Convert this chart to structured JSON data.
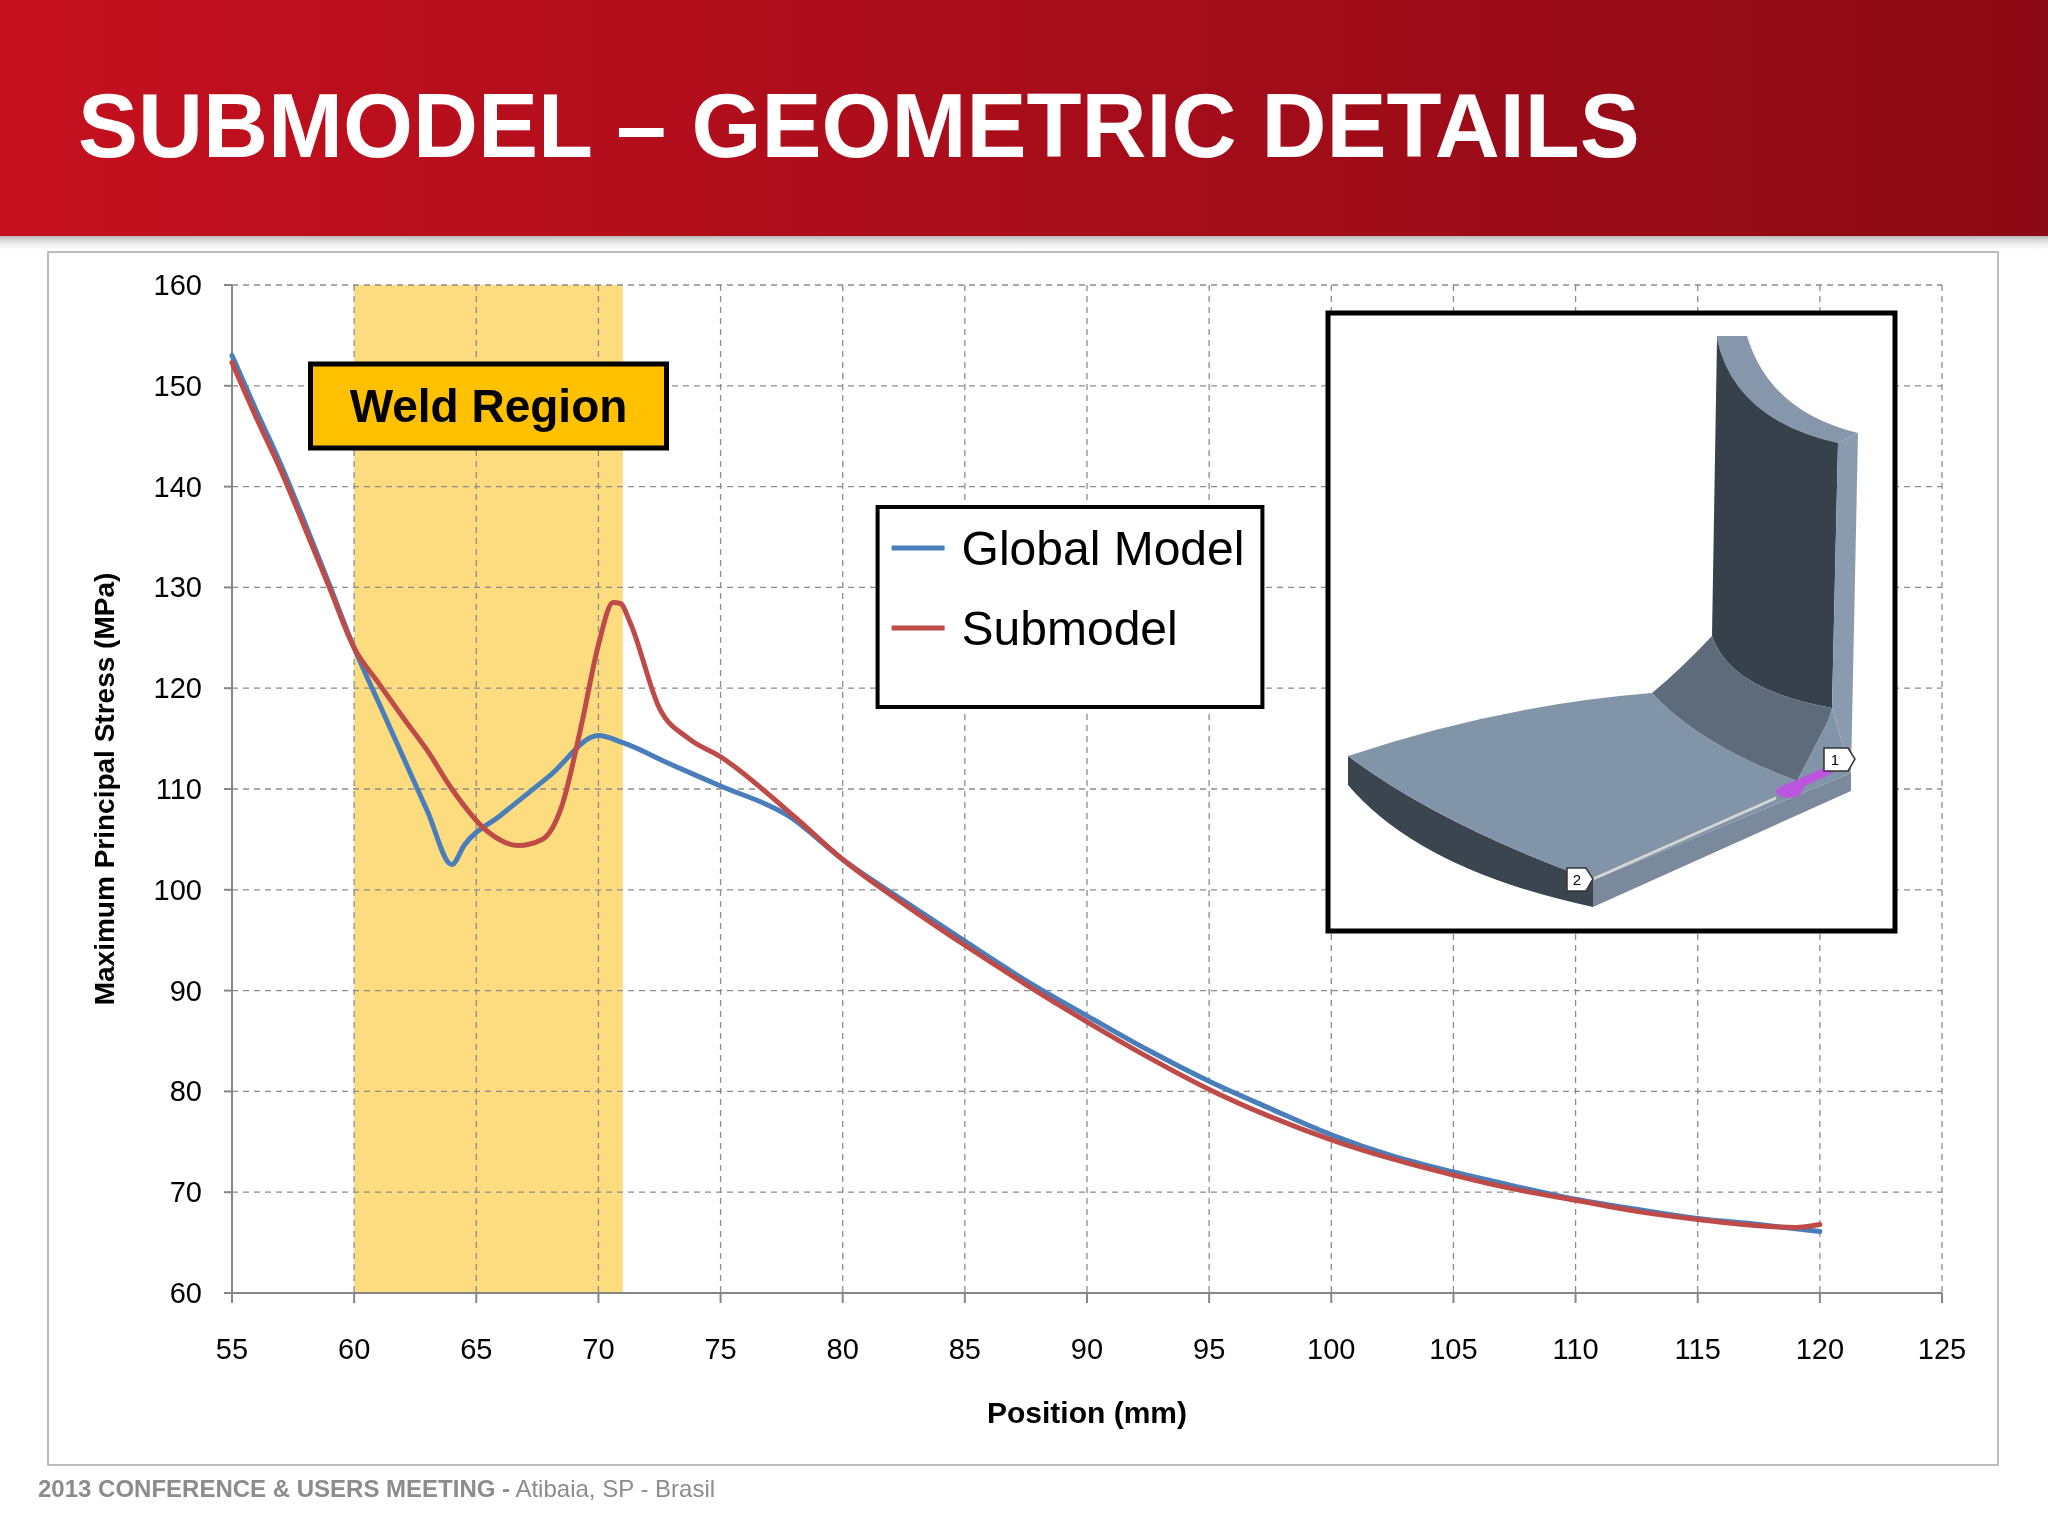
{
  "chart_data": {
    "type": "line",
    "title": "SUBMODEL – GEOMETRIC DETAILS",
    "xlabel": "Position (mm)",
    "ylabel": "Maximum Principal Stress (MPa)",
    "xlim": [
      55,
      125
    ],
    "xticks": [
      55,
      60,
      65,
      70,
      75,
      80,
      85,
      90,
      95,
      100,
      105,
      110,
      115,
      120,
      125
    ],
    "ylim": [
      60,
      160
    ],
    "yticks": [
      60,
      70,
      80,
      90,
      100,
      110,
      120,
      130,
      140,
      150,
      160
    ],
    "grid": true,
    "legend": "top",
    "series": [
      {
        "name": "Global Model",
        "color": "#4a7ebb",
        "x": [
          55,
          56,
          57,
          58,
          59,
          60,
          61,
          62,
          63,
          64,
          64.5,
          66,
          68,
          70,
          71,
          73,
          75,
          77.8,
          80,
          82.5,
          85,
          87.5,
          90,
          92.5,
          95,
          97.5,
          100,
          102.5,
          105,
          107.5,
          110,
          112.5,
          115,
          117.5,
          120
        ],
        "values": [
          153.0,
          147.5,
          142.2,
          136.3,
          130.2,
          124.0,
          118.6,
          113.2,
          107.8,
          102.5,
          104.4,
          107.4,
          111.3,
          115.3,
          114.6,
          112.4,
          110.3,
          107.3,
          103.0,
          98.9,
          94.9,
          91.0,
          87.5,
          84.1,
          81.0,
          78.3,
          75.7,
          73.6,
          72.0,
          70.6,
          69.3,
          68.3,
          67.4,
          66.8,
          66.1
        ]
      },
      {
        "name": "Submodel",
        "color": "#be4b48",
        "x": [
          55,
          56,
          57,
          58,
          59,
          60,
          61,
          62,
          63,
          64,
          65.5,
          66.7,
          67.7,
          68.5,
          69.3,
          70,
          70.6,
          70.9,
          71.3,
          72.5,
          73.7,
          75,
          78,
          80,
          82.5,
          85,
          87.5,
          90,
          92.5,
          95,
          97.5,
          100,
          102.5,
          105,
          107.5,
          110,
          112.5,
          115,
          119,
          120
        ],
        "values": [
          152.3,
          146.8,
          141.6,
          135.8,
          129.9,
          124.0,
          120.5,
          117.1,
          113.8,
          110.0,
          105.7,
          104.4,
          105.0,
          108.3,
          116.3,
          124.3,
          128.5,
          128.4,
          126.5,
          118.0,
          115.0,
          113.2,
          107.3,
          103.0,
          98.6,
          94.5,
          90.6,
          86.9,
          83.4,
          80.2,
          77.5,
          75.2,
          73.3,
          71.7,
          70.3,
          69.2,
          68.1,
          67.3,
          66.5,
          66.8
        ]
      }
    ],
    "bands": [
      {
        "axis": "x",
        "from": 60,
        "to": 71,
        "label": "Weld Region",
        "color": "#fddc80"
      }
    ],
    "annotations": [
      "1",
      "2",
      "2013 CONFERENCE & USERS MEETING - Atibaia, SP - Brasil"
    ]
  }
}
